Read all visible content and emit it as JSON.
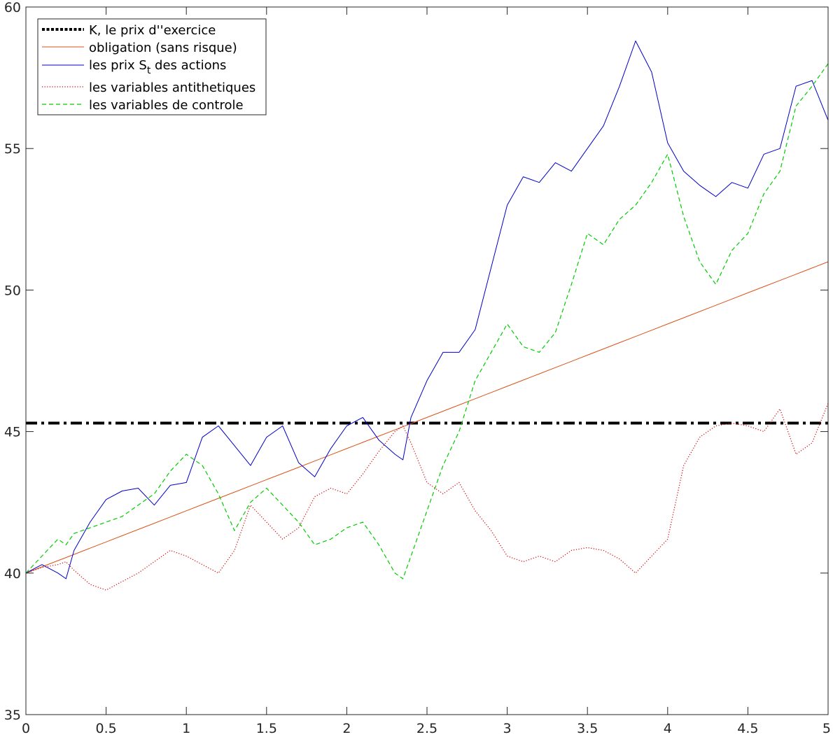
{
  "chart_data": {
    "type": "line",
    "title": "",
    "xlabel": "",
    "ylabel": "",
    "xlim": [
      0,
      5
    ],
    "ylim": [
      35,
      60
    ],
    "grid": false,
    "legend_position": "top-left",
    "x_ticks": [
      {
        "value": 0,
        "label": "0"
      },
      {
        "value": 0.5,
        "label": "0.5"
      },
      {
        "value": 1,
        "label": "1"
      },
      {
        "value": 1.5,
        "label": "1.5"
      },
      {
        "value": 2,
        "label": "2"
      },
      {
        "value": 2.5,
        "label": "2.5"
      },
      {
        "value": 3,
        "label": "3"
      },
      {
        "value": 3.5,
        "label": "3.5"
      },
      {
        "value": 4,
        "label": "4"
      },
      {
        "value": 4.5,
        "label": "4.5"
      },
      {
        "value": 5,
        "label": "5"
      }
    ],
    "y_ticks": [
      {
        "value": 35,
        "label": "35"
      },
      {
        "value": 40,
        "label": "40"
      },
      {
        "value": 45,
        "label": "45"
      },
      {
        "value": 50,
        "label": "50"
      },
      {
        "value": 55,
        "label": "55"
      },
      {
        "value": 60,
        "label": "60"
      }
    ],
    "x": [
      0,
      0.1,
      0.2,
      0.25,
      0.3,
      0.4,
      0.5,
      0.6,
      0.7,
      0.8,
      0.9,
      1.0,
      1.1,
      1.2,
      1.3,
      1.4,
      1.5,
      1.6,
      1.7,
      1.8,
      1.9,
      2.0,
      2.1,
      2.2,
      2.3,
      2.35,
      2.4,
      2.5,
      2.6,
      2.7,
      2.8,
      2.9,
      3.0,
      3.1,
      3.2,
      3.3,
      3.4,
      3.5,
      3.6,
      3.7,
      3.8,
      3.9,
      4.0,
      4.1,
      4.2,
      4.3,
      4.4,
      4.5,
      4.6,
      4.7,
      4.8,
      4.9,
      5.0
    ],
    "series": [
      {
        "name": "K, le prix d''exercice",
        "style": "dash-dot",
        "color": "#000000",
        "width": 4,
        "values": [
          45.3,
          45.3,
          45.3,
          45.3,
          45.3,
          45.3,
          45.3,
          45.3,
          45.3,
          45.3,
          45.3,
          45.3,
          45.3,
          45.3,
          45.3,
          45.3,
          45.3,
          45.3,
          45.3,
          45.3,
          45.3,
          45.3,
          45.3,
          45.3,
          45.3,
          45.3,
          45.3,
          45.3,
          45.3,
          45.3,
          45.3,
          45.3,
          45.3,
          45.3,
          45.3,
          45.3,
          45.3,
          45.3,
          45.3,
          45.3,
          45.3,
          45.3,
          45.3,
          45.3,
          45.3,
          45.3,
          45.3,
          45.3,
          45.3,
          45.3,
          45.3,
          45.3,
          45.3
        ]
      },
      {
        "name": "obligation (sans risque)",
        "style": "solid",
        "color": "#d95319",
        "width": 1,
        "values": [
          40.0,
          40.22,
          40.44,
          40.55,
          40.66,
          40.88,
          41.1,
          41.32,
          41.54,
          41.76,
          41.98,
          42.2,
          42.42,
          42.64,
          42.86,
          43.08,
          43.3,
          43.52,
          43.74,
          43.96,
          44.18,
          44.4,
          44.62,
          44.84,
          45.06,
          45.17,
          45.28,
          45.5,
          45.72,
          45.94,
          46.16,
          46.38,
          46.6,
          46.82,
          47.04,
          47.26,
          47.48,
          47.7,
          47.92,
          48.14,
          48.36,
          48.58,
          48.8,
          49.02,
          49.24,
          49.46,
          49.68,
          49.9,
          50.12,
          50.34,
          50.56,
          50.78,
          51.0
        ]
      },
      {
        "name": "les prix S_t des actions",
        "style": "solid",
        "color": "#0000c8",
        "width": 1,
        "values": [
          40.0,
          40.3,
          40.0,
          39.8,
          40.8,
          41.8,
          42.6,
          42.9,
          43.0,
          42.4,
          43.1,
          43.2,
          44.8,
          45.2,
          44.5,
          43.8,
          44.8,
          45.2,
          43.9,
          43.4,
          44.4,
          45.2,
          45.5,
          44.7,
          44.2,
          44.0,
          45.5,
          46.8,
          47.8,
          47.8,
          48.6,
          50.8,
          53.0,
          54.0,
          53.8,
          54.5,
          54.2,
          55.0,
          55.8,
          57.2,
          58.8,
          57.7,
          55.2,
          54.2,
          53.7,
          53.3,
          53.8,
          53.6,
          54.8,
          55.0,
          57.2,
          57.4,
          56.0
        ]
      },
      {
        "name": "les variables antithetiques",
        "style": "dotted",
        "color": "#d40000",
        "width": 1.2,
        "values": [
          40.0,
          40.2,
          40.3,
          40.4,
          40.1,
          39.6,
          39.4,
          39.7,
          40.0,
          40.4,
          40.8,
          40.6,
          40.3,
          40.0,
          40.8,
          42.4,
          41.8,
          41.2,
          41.6,
          42.7,
          43.0,
          42.8,
          43.5,
          44.3,
          45.0,
          45.2,
          44.6,
          43.2,
          42.8,
          43.2,
          42.2,
          41.5,
          40.6,
          40.4,
          40.6,
          40.4,
          40.8,
          40.9,
          40.8,
          40.5,
          40.0,
          40.6,
          41.2,
          43.8,
          44.8,
          45.2,
          45.3,
          45.2,
          45.0,
          45.8,
          44.2,
          44.6,
          46.0
        ]
      },
      {
        "name": "les variables de controle",
        "style": "dashed",
        "color": "#00cc00",
        "width": 1.2,
        "values": [
          40.0,
          40.6,
          41.2,
          41.0,
          41.4,
          41.6,
          41.8,
          42.0,
          42.4,
          42.8,
          43.6,
          44.2,
          43.8,
          42.8,
          41.5,
          42.5,
          43.0,
          42.4,
          41.8,
          41.0,
          41.2,
          41.6,
          41.8,
          41.0,
          40.0,
          39.8,
          40.6,
          42.2,
          43.8,
          45.0,
          46.8,
          47.8,
          48.8,
          48.0,
          47.8,
          48.5,
          50.2,
          52.0,
          51.6,
          52.5,
          53.0,
          53.8,
          54.8,
          52.6,
          51.0,
          50.2,
          51.4,
          52.0,
          53.4,
          54.2,
          56.5,
          57.2,
          58.0
        ]
      }
    ]
  },
  "legend": {
    "items": [
      {
        "text": "K, le prix d''exercice",
        "sub": ""
      },
      {
        "text": "obligation (sans risque)",
        "sub": ""
      },
      {
        "text": "les prix S",
        "sub": "t",
        "suffix": " des actions"
      },
      {
        "text": "les variables antithetiques",
        "sub": ""
      },
      {
        "text": "les variables de controle",
        "sub": ""
      }
    ]
  }
}
